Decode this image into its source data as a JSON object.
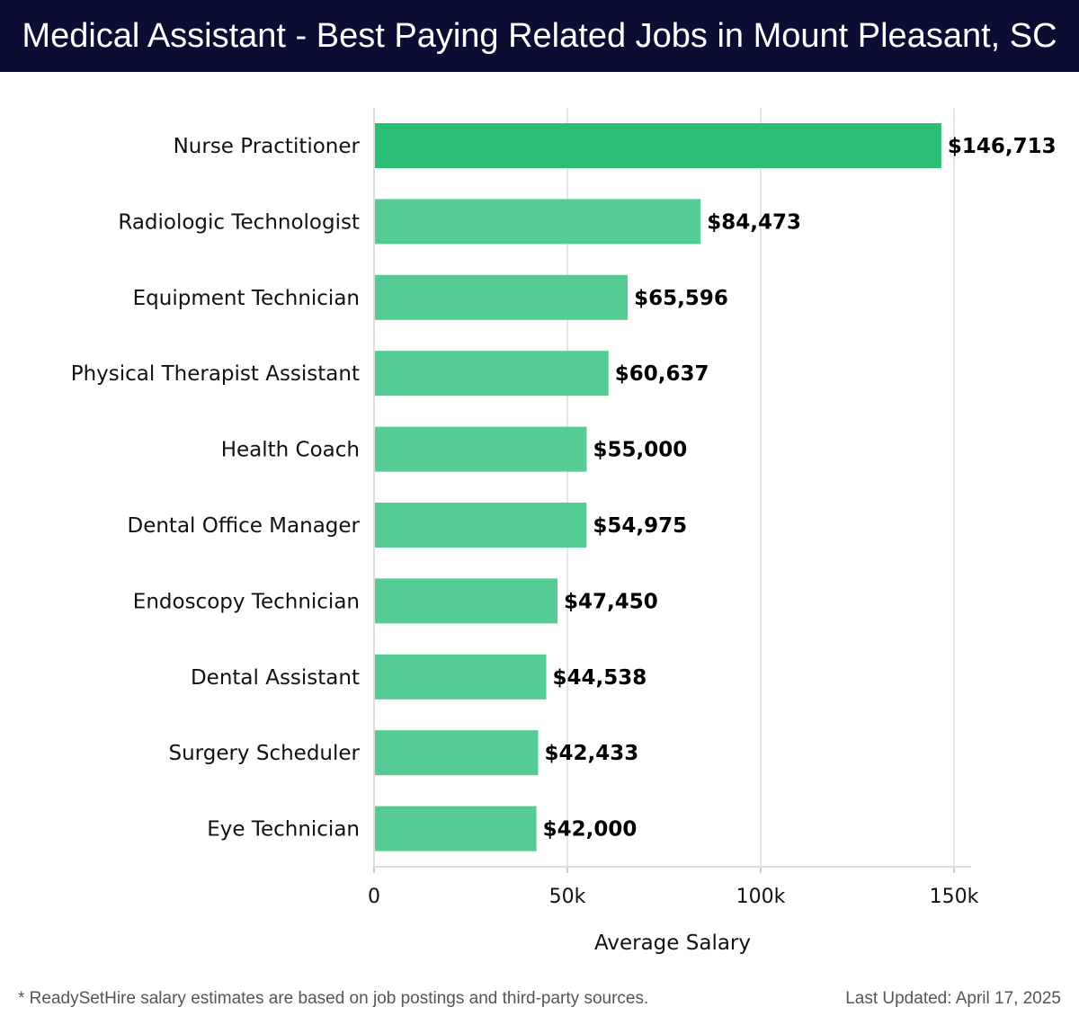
{
  "header": {
    "title": "Medical Assistant - Best Paying Related Jobs in Mount Pleasant, SC"
  },
  "footer": {
    "note": "* ReadySetHire salary estimates are based on job postings and third-party sources.",
    "updated": "Last Updated: April 17, 2025"
  },
  "colors": {
    "title_background": "#0b0d33",
    "bar_top": "#2bbf76",
    "bar": "#55cc94",
    "grid": "#e6e6e6"
  },
  "chart_data": {
    "type": "bar",
    "orientation": "horizontal",
    "xlabel": "Average Salary",
    "xlim": [
      0,
      155000
    ],
    "ticks": [
      {
        "value": 0,
        "label": "0"
      },
      {
        "value": 50000,
        "label": "50k"
      },
      {
        "value": 100000,
        "label": "100k"
      },
      {
        "value": 150000,
        "label": "150k"
      }
    ],
    "grid": true,
    "categories": [
      "Nurse Practitioner",
      "Radiologic Technologist",
      "Equipment Technician",
      "Physical Therapist Assistant",
      "Health Coach",
      "Dental Office Manager",
      "Endoscopy Technician",
      "Dental Assistant",
      "Surgery Scheduler",
      "Eye Technician"
    ],
    "values": [
      146713,
      84473,
      65596,
      60637,
      55000,
      54975,
      47450,
      44538,
      42433,
      42000
    ],
    "value_labels": [
      "$146,713",
      "$84,473",
      "$65,596",
      "$60,637",
      "$55,000",
      "$54,975",
      "$47,450",
      "$44,538",
      "$42,433",
      "$42,000"
    ]
  }
}
